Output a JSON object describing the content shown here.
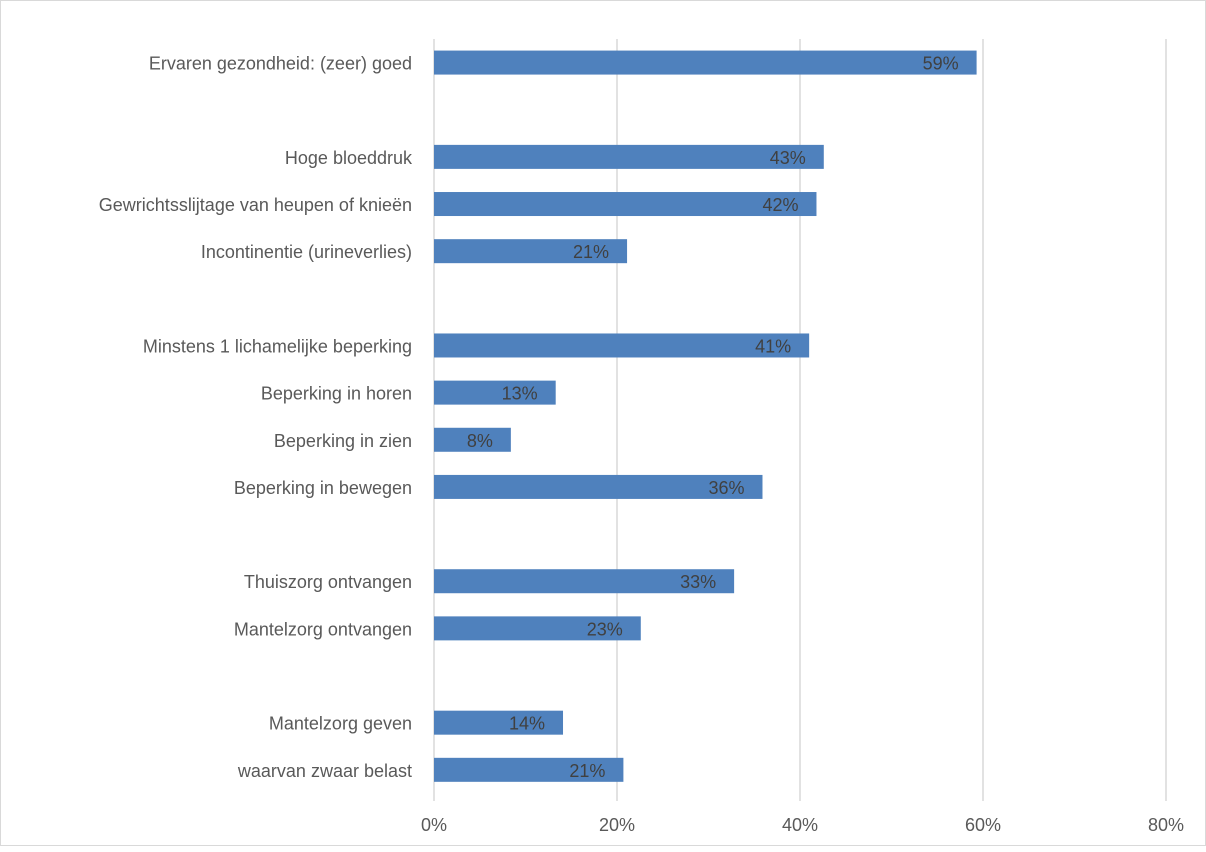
{
  "chart_data": {
    "type": "bar",
    "orientation": "horizontal",
    "categories": [
      "Ervaren gezondheid: (zeer) goed",
      "",
      "Hoge bloeddruk",
      "Gewrichtsslijtage van heupen of knieën",
      "Incontinentie (urineverlies)",
      "",
      "Minstens 1 lichamelijke beperking",
      "Beperking in horen",
      "Beperking in zien",
      "Beperking in bewegen",
      "",
      "Thuiszorg ontvangen",
      "Mantelzorg ontvangen",
      "",
      "Mantelzorg geven",
      "waarvan zwaar belast"
    ],
    "values": [
      59.3,
      null,
      42.6,
      41.8,
      21.1,
      null,
      41.0,
      13.3,
      8.4,
      35.9,
      null,
      32.8,
      22.6,
      null,
      14.1,
      20.7
    ],
    "data_labels": [
      "59%",
      "",
      "43%",
      "42%",
      "21%",
      "",
      "41%",
      "13%",
      "8%",
      "36%",
      "",
      "33%",
      "23%",
      "",
      "14%",
      "21%"
    ],
    "xlim": [
      0,
      80
    ],
    "xticks": [
      0,
      20,
      40,
      60,
      80
    ],
    "xtick_labels": [
      "0%",
      "20%",
      "40%",
      "60%",
      "80%"
    ],
    "grid": "vertical",
    "legend": "none",
    "colors": {
      "bar": "#4f81bd",
      "grid": "#d9d9d9",
      "text": "#595959",
      "data_label": "#404040"
    }
  }
}
